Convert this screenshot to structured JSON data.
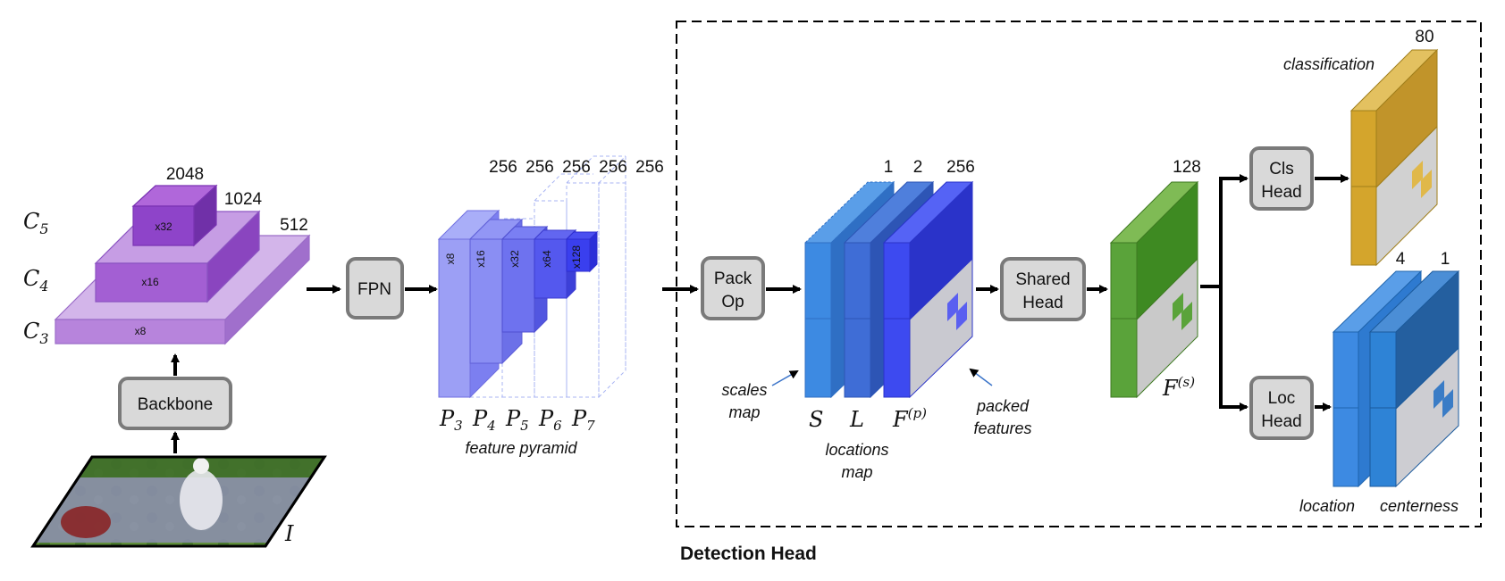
{
  "backbone": {
    "levels": [
      {
        "label": "C",
        "sub": "5",
        "scale": "x32",
        "channels": "2048",
        "color": "#8e44c9"
      },
      {
        "label": "C",
        "sub": "4",
        "scale": "x16",
        "channels": "1024",
        "color": "#a35fd3"
      },
      {
        "label": "C",
        "sub": "3",
        "scale": "x8",
        "channels": "512",
        "color": "#b784dc"
      }
    ],
    "box_label": "Backbone",
    "input_label": "I"
  },
  "fpn": {
    "box_label": "FPN",
    "channels": [
      "256",
      "256",
      "256",
      "256",
      "256"
    ],
    "scales": [
      "x8",
      "x16",
      "x32",
      "x64",
      "x128"
    ],
    "levels": [
      {
        "label": "P",
        "sub": "3"
      },
      {
        "label": "P",
        "sub": "4"
      },
      {
        "label": "P",
        "sub": "5"
      },
      {
        "label": "P",
        "sub": "6"
      },
      {
        "label": "P",
        "sub": "7"
      }
    ],
    "caption": "feature pyramid"
  },
  "detection_head": {
    "title": "Detection Head",
    "pack_op": {
      "line1": "Pack",
      "line2": "Op"
    },
    "packed_channels": [
      "1",
      "2",
      "256"
    ],
    "packed_labels": {
      "s": "S",
      "l": "L",
      "f": "F",
      "f_sup": "(p)"
    },
    "scales_map": {
      "line1": "scales",
      "line2": "map"
    },
    "locations_map": {
      "line1": "locations",
      "line2": "map"
    },
    "packed_features": {
      "line1": "packed",
      "line2": "features"
    },
    "shared_head": {
      "line1": "Shared",
      "line2": "Head"
    },
    "shared_channels": "128",
    "shared_label": {
      "f": "F",
      "sup": "(s)"
    },
    "cls_head": {
      "line1": "Cls",
      "line2": "Head"
    },
    "loc_head": {
      "line1": "Loc",
      "line2": "Head"
    },
    "cls_channels": "80",
    "cls_label": "classification",
    "loc_channels": [
      "4",
      "1"
    ],
    "loc_label": "location",
    "centerness_label": "centerness"
  },
  "colors": {
    "box_fill": "#d9d9d9",
    "box_stroke": "#7a7a7a",
    "fpn": "#7a7af5",
    "packed": "#3b82e6",
    "shared": "#5aa33a",
    "cls": "#d4a52c",
    "loc": "#2e83d6"
  }
}
